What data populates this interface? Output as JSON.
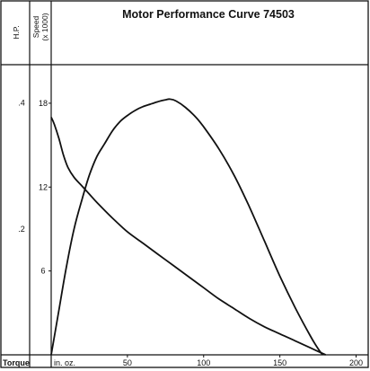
{
  "chart_data": {
    "type": "line",
    "title": "Motor Performance Curve 74503",
    "axis_headers": {
      "hp": "H.P.",
      "speed_line1": "Speed",
      "speed_line2": "(x 1000)"
    },
    "x_axis": {
      "label": "Torque",
      "unit": "in. oz.",
      "range": [
        0,
        205
      ],
      "ticks": [
        50,
        100,
        150,
        200
      ]
    },
    "speed_axis": {
      "range": [
        0,
        20.5
      ],
      "ticks": [
        18,
        12,
        6
      ]
    },
    "hp_axis": {
      "range": [
        0,
        0.455
      ],
      "ticks": [
        ".4",
        ".2"
      ],
      "tick_values": [
        0.4,
        0.2
      ]
    },
    "grid": false,
    "series": [
      {
        "axis": "speed",
        "points": [
          [
            0,
            17
          ],
          [
            2,
            16.5
          ],
          [
            5,
            15.5
          ],
          [
            8,
            14.3
          ],
          [
            11,
            13.4
          ],
          [
            15,
            12.7
          ],
          [
            20,
            12.1
          ],
          [
            25,
            11.5
          ],
          [
            30,
            10.9
          ],
          [
            40,
            9.8
          ],
          [
            50,
            8.8
          ],
          [
            60,
            8.0
          ],
          [
            70,
            7.2
          ],
          [
            80,
            6.4
          ],
          [
            90,
            5.6
          ],
          [
            100,
            4.8
          ],
          [
            110,
            4.0
          ],
          [
            120,
            3.3
          ],
          [
            130,
            2.6
          ],
          [
            140,
            2.0
          ],
          [
            150,
            1.5
          ],
          [
            160,
            1.0
          ],
          [
            170,
            0.5
          ],
          [
            180,
            0.0
          ]
        ]
      },
      {
        "axis": "hp",
        "points": [
          [
            0,
            0.0
          ],
          [
            5,
            0.07
          ],
          [
            10,
            0.14
          ],
          [
            15,
            0.2
          ],
          [
            20,
            0.245
          ],
          [
            25,
            0.285
          ],
          [
            30,
            0.315
          ],
          [
            35,
            0.335
          ],
          [
            40,
            0.355
          ],
          [
            45,
            0.37
          ],
          [
            50,
            0.38
          ],
          [
            55,
            0.388
          ],
          [
            60,
            0.394
          ],
          [
            65,
            0.398
          ],
          [
            70,
            0.402
          ],
          [
            75,
            0.405
          ],
          [
            78,
            0.406
          ],
          [
            82,
            0.403
          ],
          [
            88,
            0.393
          ],
          [
            95,
            0.377
          ],
          [
            100,
            0.362
          ],
          [
            110,
            0.327
          ],
          [
            120,
            0.285
          ],
          [
            130,
            0.235
          ],
          [
            140,
            0.18
          ],
          [
            150,
            0.125
          ],
          [
            160,
            0.075
          ],
          [
            170,
            0.03
          ],
          [
            175,
            0.01
          ],
          [
            178,
            0.0
          ]
        ]
      }
    ]
  }
}
